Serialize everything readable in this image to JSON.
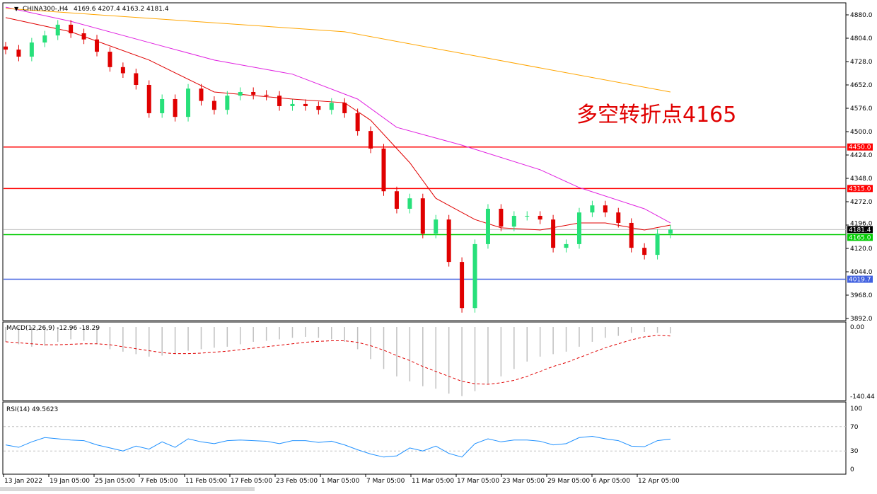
{
  "header": {
    "symbol": "CHINA300-,H4",
    "ohlc": "4169.6 4207.4 4163.2 4181.4"
  },
  "annotation": "多空转折点4165",
  "colors": {
    "bull": "#27e07a",
    "bear": "#e00000",
    "ma_fast": "#e00000",
    "ma_mid": "#e020e0",
    "ma_slow": "#ffa500",
    "macd_hist": "#c0c0c0",
    "macd_signal": "#e00000",
    "rsi": "#1e90ff"
  },
  "chart_data": [
    {
      "type": "candlestick",
      "title": "CHINA300-,H4",
      "ylim": [
        3892,
        4880
      ],
      "yticks": [
        "4880.0",
        "4804.0",
        "4728.0",
        "4652.0",
        "4576.0",
        "4500.0",
        "4424.0",
        "4348.0",
        "4272.0",
        "4196.0",
        "4120.0",
        "4044.0",
        "3968.0",
        "3892.0"
      ],
      "xticks": [
        "13 Jan 2022",
        "19 Jan 05:00",
        "25 Jan 05:00",
        "7 Feb 05:00",
        "11 Feb 05:00",
        "17 Feb 05:00",
        "23 Feb 05:00",
        "1 Mar 05:00",
        "7 Mar 05:00",
        "11 Mar 05:00",
        "17 Mar 05:00",
        "23 Mar 05:00",
        "29 Mar 05:00",
        "6 Apr 05:00",
        "12 Apr 05:00"
      ],
      "closes": [
        4767,
        4744,
        4790,
        4813,
        4848,
        4820,
        4800,
        4760,
        4710,
        4690,
        4652,
        4560,
        4606,
        4548,
        4640,
        4600,
        4571,
        4617,
        4629,
        4620,
        4617,
        4583,
        4590,
        4583,
        4571,
        4594,
        4560,
        4502,
        4445,
        4306,
        4249,
        4283,
        4168,
        4214,
        4076,
        3926,
        4134,
        4249,
        4191,
        4226,
        4226,
        4214,
        4122,
        4134,
        4237,
        4260,
        4237,
        4203,
        4122,
        4099,
        4168,
        4181.4
      ],
      "moving_averages": [
        {
          "color_key": "ma_fast",
          "values": [
            4871,
            4825,
            4733,
            4629,
            4606,
            4594,
            4537,
            4399,
            4283,
            4214,
            4187,
            4180,
            4203,
            4203,
            4180,
            4196
          ],
          "at_index": [
            0,
            5,
            11,
            16,
            22,
            26,
            28,
            31,
            33,
            36,
            38,
            41,
            44,
            46,
            49,
            51
          ]
        },
        {
          "color_key": "ma_mid",
          "values": [
            4905,
            4859,
            4790,
            4733,
            4687,
            4606,
            4514,
            4456,
            4376,
            4318,
            4249,
            4203
          ],
          "at_index": [
            0,
            5,
            11,
            16,
            22,
            27,
            30,
            35,
            41,
            44,
            49,
            51
          ]
        },
        {
          "color_key": "ma_slow",
          "values": [
            4901,
            4825,
            4629
          ],
          "at_index": [
            0,
            26,
            51
          ]
        }
      ],
      "levels": [
        {
          "price": 4450.0,
          "label": "4450.0",
          "color": "#ff0000"
        },
        {
          "price": 4315.0,
          "label": "4315.0",
          "color": "#ff0000"
        },
        {
          "price": 4165.0,
          "label": "4165.0",
          "color": "#00cc00"
        },
        {
          "price": 4019.7,
          "label": "4019.7",
          "color": "#4060e0"
        },
        {
          "price": 4181.4,
          "label": "4181.4",
          "color": "#000000"
        }
      ]
    },
    {
      "type": "bar",
      "title": "MACD(12,26,9) -12.96 -18.29",
      "ylim": [
        -140.44,
        0
      ],
      "yticks": [
        "0.00",
        "-140.44"
      ],
      "histogram": [
        -30,
        -35,
        -40,
        -38,
        -30,
        -25,
        -28,
        -35,
        -45,
        -50,
        -55,
        -60,
        -58,
        -55,
        -48,
        -45,
        -42,
        -40,
        -35,
        -30,
        -28,
        -25,
        -22,
        -20,
        -22,
        -25,
        -30,
        -45,
        -65,
        -85,
        -100,
        -110,
        -120,
        -125,
        -135,
        -140,
        -130,
        -115,
        -100,
        -85,
        -70,
        -60,
        -55,
        -50,
        -40,
        -30,
        -22,
        -18,
        -12,
        -10,
        -12,
        -12.96
      ],
      "signal": [
        -30,
        -32,
        -34,
        -36,
        -36,
        -35,
        -34,
        -34,
        -36,
        -40,
        -44,
        -48,
        -52,
        -54,
        -54,
        -53,
        -51,
        -49,
        -46,
        -43,
        -40,
        -37,
        -34,
        -31,
        -29,
        -28,
        -28,
        -31,
        -38,
        -47,
        -58,
        -68,
        -80,
        -90,
        -100,
        -110,
        -115,
        -116,
        -113,
        -108,
        -100,
        -90,
        -80,
        -72,
        -62,
        -52,
        -42,
        -34,
        -26,
        -20,
        -17,
        -18.29
      ]
    },
    {
      "type": "line",
      "title": "RSI(14) 49.5623",
      "ylim": [
        0,
        100
      ],
      "yticks": [
        "100",
        "70",
        "30",
        "0"
      ],
      "levels": [
        70,
        30
      ],
      "values": [
        40,
        36,
        45,
        52,
        50,
        48,
        47,
        40,
        35,
        30,
        38,
        33,
        45,
        36,
        50,
        45,
        42,
        47,
        48,
        47,
        46,
        42,
        47,
        47,
        44,
        46,
        40,
        32,
        25,
        20,
        22,
        35,
        30,
        38,
        26,
        20,
        42,
        50,
        45,
        48,
        48,
        46,
        40,
        42,
        52,
        54,
        50,
        47,
        38,
        37,
        47,
        49.5623
      ]
    }
  ]
}
